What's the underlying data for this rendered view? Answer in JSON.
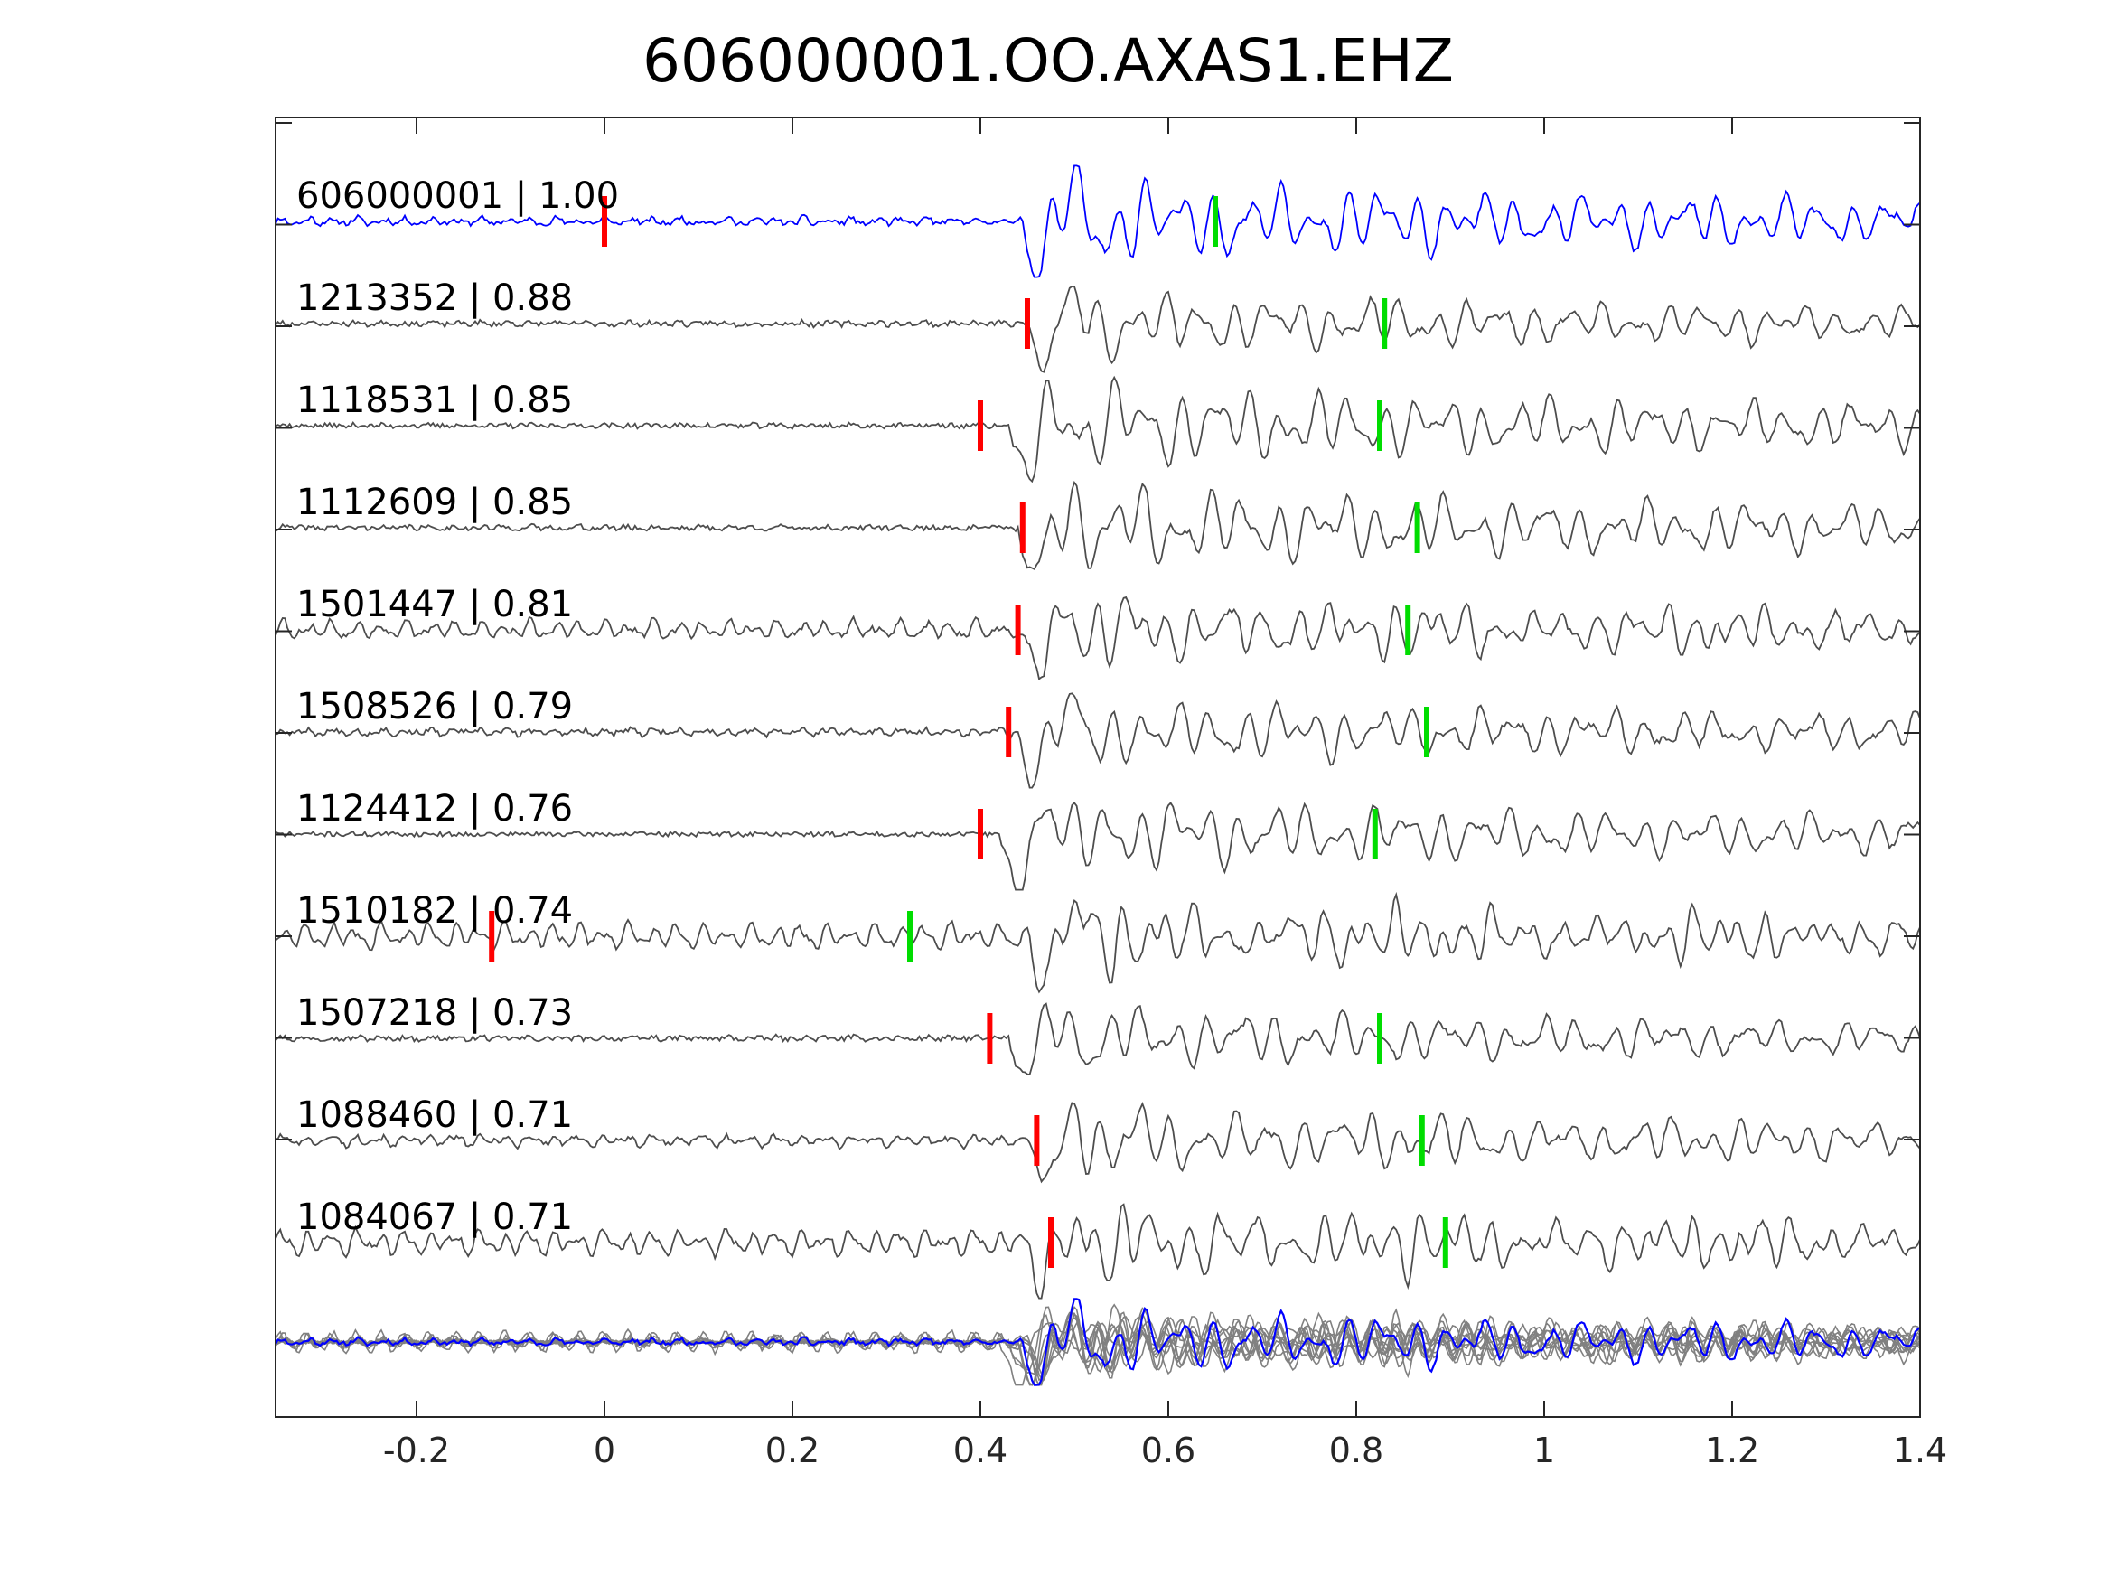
{
  "chart_data": {
    "type": "line",
    "title": "606000001.OO.AXAS1.EHZ",
    "xlabel": "",
    "ylabel": "",
    "xlim": [
      -0.35,
      1.4
    ],
    "xticks": [
      -0.2,
      0,
      0.2,
      0.4,
      0.6,
      0.8,
      1,
      1.2,
      1.4
    ],
    "xtick_labels": [
      "-0.2",
      "0",
      "0.2",
      "0.4",
      "0.6",
      "0.8",
      "1",
      "1.2",
      "1.4"
    ],
    "grid": false,
    "colors": {
      "template": "#0000ff",
      "trace": "#4d4d4d",
      "stack": "#808080",
      "p_pick": "#ff0000",
      "s_pick": "#00dd00",
      "axis": "#262626"
    },
    "series": [
      {
        "name": "606000001 | 1.00",
        "role": "template",
        "p_pick": 0.0,
        "s_pick": 0.65,
        "onset": 0.445,
        "pre_noise": 0.1,
        "amp": 1.0,
        "seed": 11
      },
      {
        "name": "1213352 | 0.88",
        "p_pick": 0.45,
        "s_pick": 0.83,
        "onset": 0.45,
        "pre_noise": 0.05,
        "amp": 0.75,
        "seed": 23
      },
      {
        "name": "1118531 | 0.85",
        "p_pick": 0.4,
        "s_pick": 0.825,
        "onset": 0.43,
        "pre_noise": 0.03,
        "amp": 1.0,
        "seed": 37
      },
      {
        "name": "1112609 | 0.85",
        "p_pick": 0.445,
        "s_pick": 0.865,
        "onset": 0.44,
        "pre_noise": 0.04,
        "amp": 1.0,
        "seed": 41
      },
      {
        "name": "1501447 | 0.81",
        "p_pick": 0.44,
        "s_pick": 0.855,
        "onset": 0.44,
        "pre_noise": 0.25,
        "amp": 0.8,
        "seed": 53
      },
      {
        "name": "1508526 | 0.79",
        "p_pick": 0.43,
        "s_pick": 0.875,
        "onset": 0.44,
        "pre_noise": 0.08,
        "amp": 0.8,
        "seed": 67
      },
      {
        "name": "1124412 | 0.76",
        "p_pick": 0.4,
        "s_pick": 0.82,
        "onset": 0.42,
        "pre_noise": 0.01,
        "amp": 0.9,
        "seed": 71
      },
      {
        "name": "1510182 | 0.74",
        "p_pick": -0.12,
        "s_pick": 0.325,
        "onset": 0.45,
        "pre_noise": 0.35,
        "amp": 0.75,
        "seed": 83
      },
      {
        "name": "1507218 | 0.73",
        "p_pick": 0.41,
        "s_pick": 0.825,
        "onset": 0.43,
        "pre_noise": 0.04,
        "amp": 0.75,
        "seed": 97
      },
      {
        "name": "1088460 | 0.71",
        "p_pick": 0.46,
        "s_pick": 0.87,
        "onset": 0.45,
        "pre_noise": 0.15,
        "amp": 0.8,
        "seed": 101
      },
      {
        "name": "1084067 | 0.71",
        "p_pick": 0.475,
        "s_pick": 0.895,
        "onset": 0.45,
        "pre_noise": 0.35,
        "amp": 0.8,
        "seed": 113
      }
    ]
  }
}
